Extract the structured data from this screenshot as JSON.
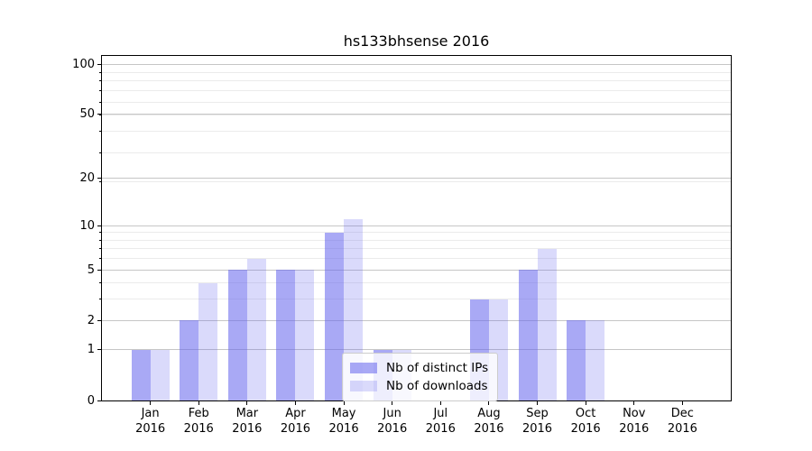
{
  "title": "hs133bhsense 2016",
  "chart_data": {
    "type": "bar",
    "title": "hs133bhsense 2016",
    "categories": [
      "Jan",
      "Feb",
      "Mar",
      "Apr",
      "May",
      "Jun",
      "Jul",
      "Aug",
      "Sep",
      "Oct",
      "Nov",
      "Dec"
    ],
    "category_year": "2016",
    "series": [
      {
        "name": "Nb of distinct IPs",
        "values": [
          1,
          2,
          5,
          5,
          9,
          1,
          0,
          3,
          5,
          2,
          0,
          0
        ],
        "color": "#6666ee",
        "alpha": 0.56
      },
      {
        "name": "Nb of downloads",
        "values": [
          1,
          4,
          6,
          5,
          11,
          1,
          0,
          3,
          7,
          2,
          0,
          0
        ],
        "color": "#6666ee",
        "alpha": 0.24
      }
    ],
    "yscale": "log1p",
    "ylim": [
      0,
      112
    ],
    "yticks": [
      0,
      1,
      2,
      5,
      10,
      20,
      50,
      100
    ],
    "yticks_minor": [
      1,
      2,
      3,
      4,
      5,
      6,
      7,
      8,
      9,
      19,
      29,
      39,
      49,
      59,
      69,
      79,
      89,
      99
    ],
    "grid": true,
    "legend_position": "lower-center"
  },
  "colors": {
    "grid_major": "#c6c6c6",
    "grid_minor": "#ebebeb",
    "spine": "#000000",
    "background": "#ffffff"
  }
}
